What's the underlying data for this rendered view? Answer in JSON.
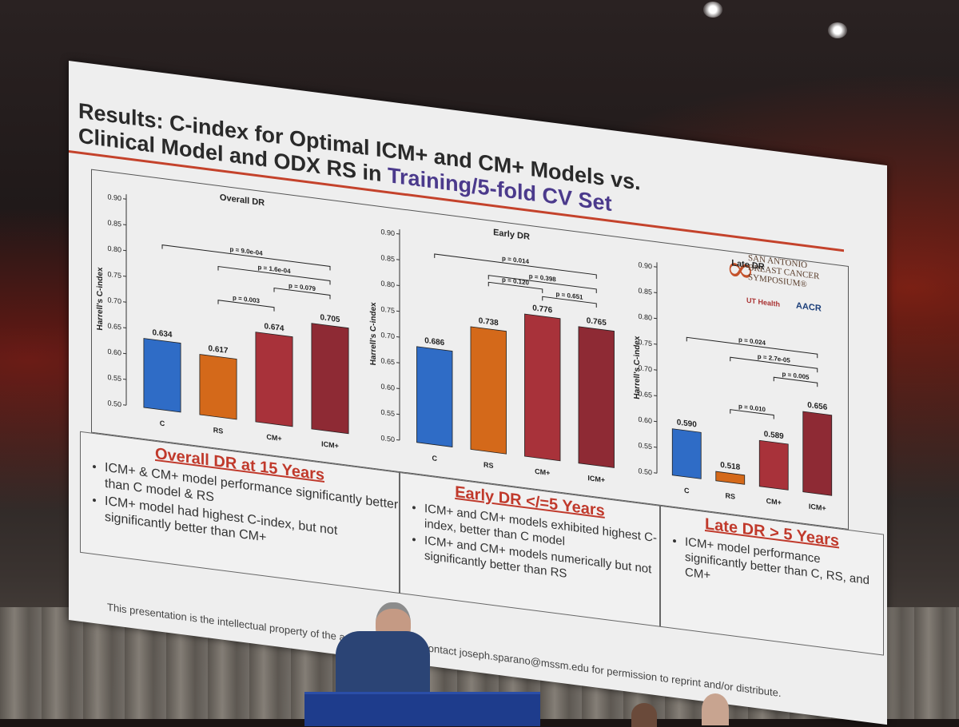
{
  "slide": {
    "title_line1": "Results: C-index for Optimal ICM+ and CM+ Models vs.",
    "title_line2_prefix": "Clinical Model and ODX RS in ",
    "title_line2_highlight": "Training/5-fold CV Set",
    "footer": "This presentation is the intellectual property of the author/presenter. Contact joseph.sparano@mssm.edu for permission to reprint and/or distribute.",
    "logo": {
      "org_lines": [
        "SAN ANTONIO",
        "BREAST CANCER",
        "SYMPOSIUM®"
      ],
      "ut_health": "UT Health",
      "aacr": "AACR"
    }
  },
  "colors": {
    "C": "#2f6cc6",
    "RS": "#d4691a",
    "CM+": "#a8323a",
    "ICM+": "#8e2a34",
    "accent": "#c0392b"
  },
  "chart_data": [
    {
      "type": "bar",
      "title": "Overall DR",
      "ylabel": "Harrell's C-index",
      "ylim": [
        0.5,
        0.9
      ],
      "yticks": [
        "0.50",
        "0.55",
        "0.60",
        "0.65",
        "0.70",
        "0.75",
        "0.80",
        "0.85",
        "0.90"
      ],
      "categories": [
        "C",
        "RS",
        "CM+",
        "ICM+"
      ],
      "values": [
        0.634,
        0.617,
        0.674,
        0.705
      ],
      "value_labels": [
        "0.634",
        "0.617",
        "0.674",
        "0.705"
      ],
      "comparisons": [
        {
          "from": 0,
          "to": 3,
          "label": "p = 9.0e-04"
        },
        {
          "from": 1,
          "to": 3,
          "label": "p = 1.6e-04"
        },
        {
          "from": 2,
          "to": 3,
          "label": "p = 0.079"
        },
        {
          "from": 1,
          "to": 2,
          "label": "p = 0.003"
        }
      ]
    },
    {
      "type": "bar",
      "title": "Early DR",
      "ylabel": "Harrell's C-index",
      "ylim": [
        0.5,
        0.9
      ],
      "yticks": [
        "0.50",
        "0.55",
        "0.60",
        "0.65",
        "0.70",
        "0.75",
        "0.80",
        "0.85",
        "0.90"
      ],
      "categories": [
        "C",
        "RS",
        "CM+",
        "ICM+"
      ],
      "values": [
        0.686,
        0.738,
        0.776,
        0.765
      ],
      "value_labels": [
        "0.686",
        "0.738",
        "0.776",
        "0.765"
      ],
      "comparisons": [
        {
          "from": 0,
          "to": 3,
          "label": "p = 0.014"
        },
        {
          "from": 1,
          "to": 3,
          "label": "p = 0.398"
        },
        {
          "from": 2,
          "to": 3,
          "label": "p = 0.651"
        },
        {
          "from": 1,
          "to": 2,
          "label": "p = 0.120"
        }
      ]
    },
    {
      "type": "bar",
      "title": "Late DR",
      "ylabel": "Harrell's C-index",
      "ylim": [
        0.5,
        0.9
      ],
      "yticks": [
        "0.50",
        "0.55",
        "0.60",
        "0.65",
        "0.70",
        "0.75",
        "0.80",
        "0.85",
        "0.90"
      ],
      "categories": [
        "C",
        "RS",
        "CM+",
        "ICM+"
      ],
      "values": [
        0.59,
        0.518,
        0.589,
        0.656
      ],
      "value_labels": [
        "0.590",
        "0.518",
        "0.589",
        "0.656"
      ],
      "comparisons": [
        {
          "from": 0,
          "to": 3,
          "label": "p = 0.024"
        },
        {
          "from": 1,
          "to": 3,
          "label": "p = 2.7e-05"
        },
        {
          "from": 2,
          "to": 3,
          "label": "p = 0.005"
        },
        {
          "from": 1,
          "to": 2,
          "label": "p = 0.010"
        }
      ]
    }
  ],
  "summary_boxes": [
    {
      "heading": "Overall DR at 15 Years",
      "bullets": [
        "ICM+ & CM+ model performance significantly better than C model & RS",
        "ICM+ model had highest C-index, but not significantly better than CM+"
      ]
    },
    {
      "heading": "Early DR </=5 Years",
      "bullets": [
        "ICM+ and CM+ models exhibited highest C-index, better than C model",
        "ICM+ and CM+ models numerically but not significantly better than RS"
      ]
    },
    {
      "heading": "Late DR > 5 Years",
      "bullets": [
        "ICM+ model performance significantly better than C, RS, and CM+"
      ]
    }
  ]
}
